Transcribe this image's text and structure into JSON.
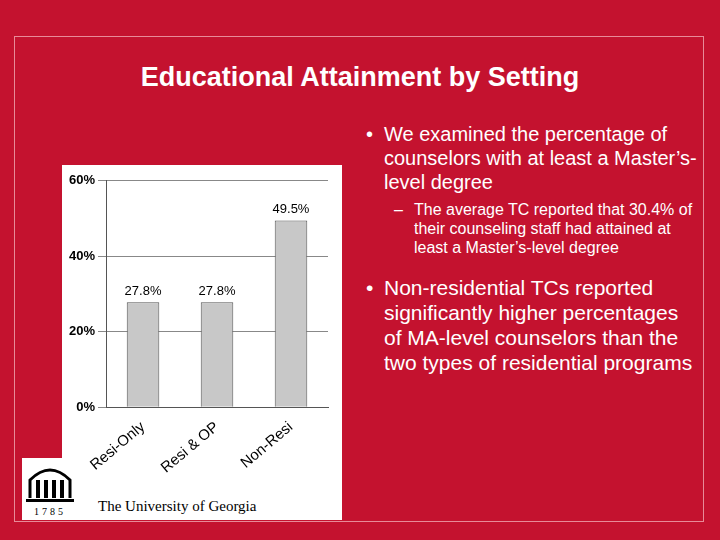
{
  "slide": {
    "title": "Educational Attainment by Setting",
    "bullets": [
      {
        "text": "We examined the percentage of counselors with at least a Master’s-level degree",
        "sub": [
          "The average TC reported that 30.4% of their counseling staff had attained at least a Master’s-level degree"
        ]
      },
      {
        "text": "Non-residential TCs reported significantly higher percentages of MA-level counselors than the two types of residential programs",
        "sub": []
      }
    ],
    "footer": "The University of Georgia",
    "logo_year": "1785"
  },
  "chart_data": {
    "type": "bar",
    "categories": [
      "Resi-Only",
      "Resi & OP",
      "Non-Resi"
    ],
    "values": [
      27.8,
      27.8,
      49.5
    ],
    "value_labels": [
      "27.8%",
      "27.8%",
      "49.5%"
    ],
    "data_labels": true,
    "color": "#c8c8c8",
    "ylim": [
      0,
      60
    ],
    "yticks": [
      {
        "value": 0,
        "label": "0%"
      },
      {
        "value": 20,
        "label": "20%"
      },
      {
        "value": 40,
        "label": "40%"
      },
      {
        "value": 60,
        "label": "60%"
      }
    ],
    "grid": true
  }
}
